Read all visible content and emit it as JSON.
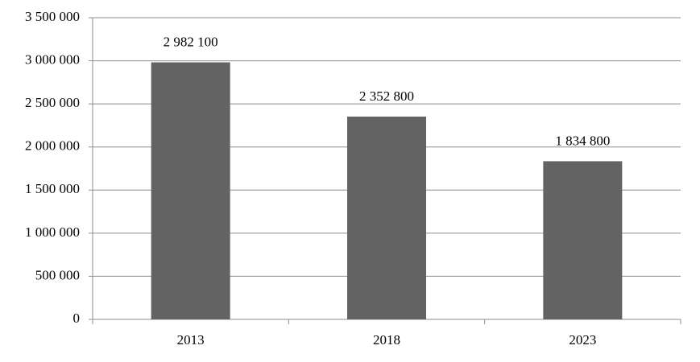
{
  "chart_data": {
    "type": "bar",
    "categories": [
      "2013",
      "2018",
      "2023"
    ],
    "values": [
      2982100,
      2352800,
      1834800
    ],
    "value_labels": [
      "2 982 100",
      "2 352 800",
      "1 834 800"
    ],
    "color": "#636363",
    "ylim": [
      0,
      3500000
    ],
    "yticks": [
      0,
      {
        "value": 500000,
        "label": "500 000"
      },
      {
        "value": 1000000,
        "label": "1 000 000"
      },
      {
        "value": 1500000,
        "label": "1 500 000"
      },
      {
        "value": 2000000,
        "label": "2 000 000"
      },
      {
        "value": 2500000,
        "label": "2 500 000"
      },
      {
        "value": 3000000,
        "label": "3 000 000"
      },
      {
        "value": 3500000,
        "label": "3 500 000"
      }
    ],
    "grid": true
  }
}
